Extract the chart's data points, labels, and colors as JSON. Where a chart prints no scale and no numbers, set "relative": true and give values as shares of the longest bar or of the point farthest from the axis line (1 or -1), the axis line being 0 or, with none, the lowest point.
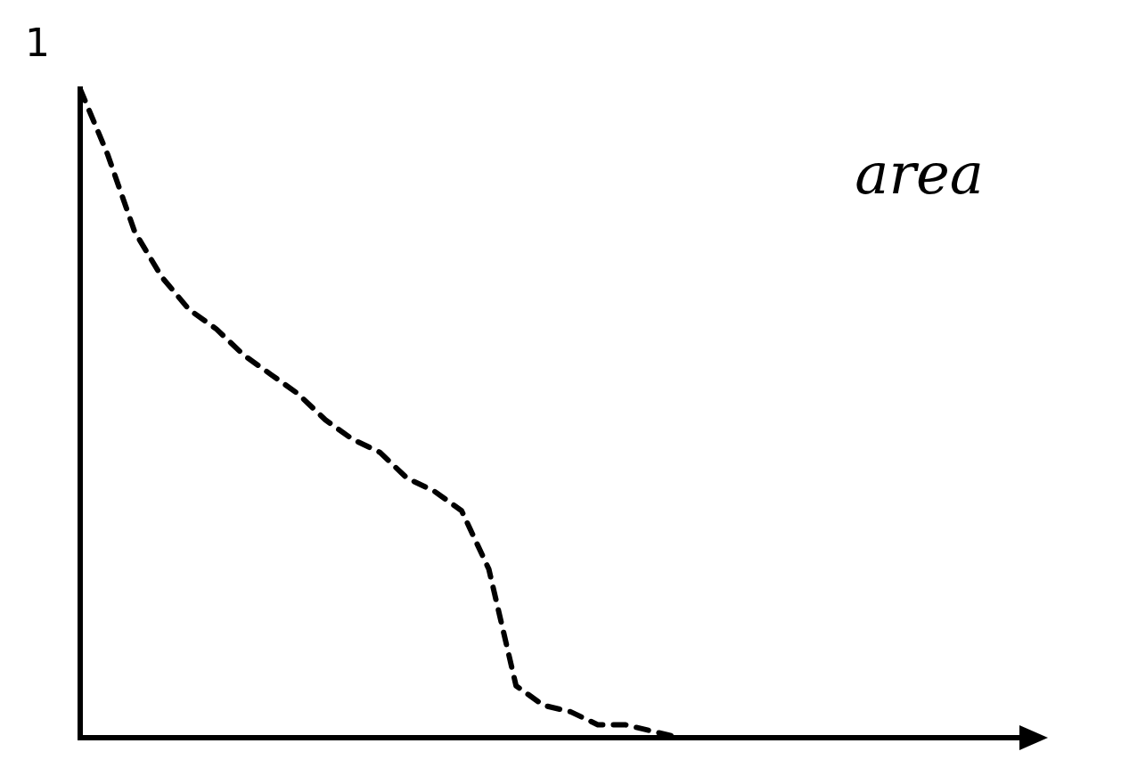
{
  "chart_data": {
    "type": "line",
    "relative": true,
    "line_style": "dashed",
    "marker": "none",
    "categories": [
      null,
      null,
      null,
      null,
      null,
      null,
      null,
      null,
      null,
      null,
      null,
      null,
      null,
      null,
      null,
      null,
      null,
      null,
      null,
      null,
      null,
      null,
      null,
      null,
      null,
      null,
      null,
      null,
      null,
      null,
      null,
      null,
      null,
      null,
      null,
      null
    ],
    "series": [
      {
        "color": "#000000",
        "values": [
          1.0,
          0.9,
          0.78,
          0.71,
          0.66,
          0.63,
          0.59,
          0.56,
          0.53,
          0.49,
          0.46,
          0.44,
          0.4,
          0.38,
          0.35,
          0.26,
          0.08,
          0.05,
          0.04,
          0.02,
          0.02,
          0.01,
          0,
          null,
          null,
          null,
          null,
          null,
          null,
          null,
          null,
          null,
          null,
          null,
          null,
          null
        ]
      }
    ],
    "annotations": [
      "1",
      "area"
    ]
  }
}
